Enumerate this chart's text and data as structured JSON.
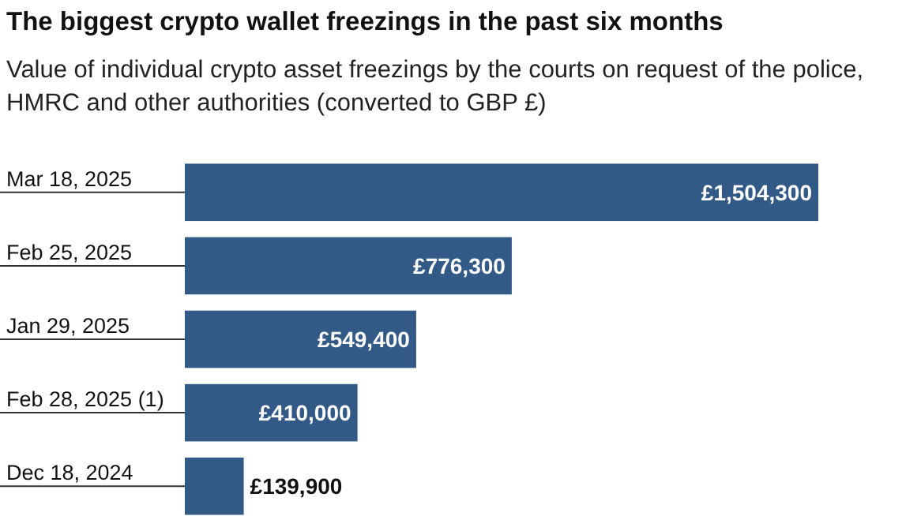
{
  "chart_data": {
    "type": "bar",
    "orientation": "horizontal",
    "title": "The biggest crypto wallet freezings in the past six months",
    "subtitle": "Value of individual crypto asset freezings by the courts on request of the police, HMRC and other authorities (converted to GBP £)",
    "categories": [
      "Mar 18, 2025",
      "Feb 25, 2025",
      "Jan 29, 2025",
      "Feb 28, 2025 (1)",
      "Dec 18, 2024"
    ],
    "values": [
      1504300,
      776300,
      549400,
      410000,
      139900
    ],
    "value_labels": [
      "£1,504,300",
      "£776,300",
      "£549,400",
      "£410,000",
      "£139,900"
    ],
    "color": "#335a87"
  }
}
